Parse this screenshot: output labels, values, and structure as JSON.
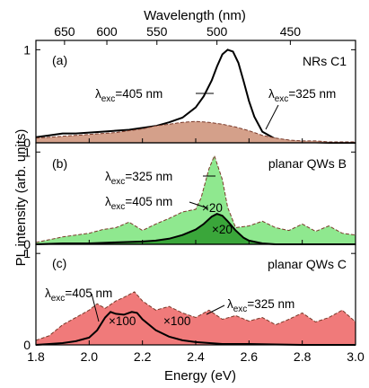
{
  "chart_data": {
    "type": "area",
    "shared_x_axis": {
      "label": "Energy (eV)",
      "range": [
        1.8,
        3.0
      ],
      "ticks": [
        "1.8",
        "2.0",
        "2.2",
        "2.4",
        "2.6",
        "2.8",
        "3.0"
      ]
    },
    "top_axis": {
      "label": "Wavelength (nm)",
      "ticks": [
        "650",
        "600",
        "550",
        "500",
        "450"
      ]
    },
    "ylabel": "PL intensity (arb. units)",
    "panels": [
      {
        "tag": "(a)",
        "title": "NRs C1",
        "ylim": [
          0,
          1.1
        ],
        "yticks": [
          "0",
          "1"
        ],
        "series": [
          {
            "style": "solid-black",
            "x": [
              1.8,
              1.85,
              1.9,
              1.95,
              2.0,
              2.05,
              2.1,
              2.15,
              2.2,
              2.25,
              2.3,
              2.35,
              2.4,
              2.43,
              2.46,
              2.48,
              2.5,
              2.52,
              2.54,
              2.56,
              2.58,
              2.6,
              2.62,
              2.65,
              2.7,
              2.75,
              2.8,
              2.9,
              3.0
            ],
            "values": [
              0.06,
              0.08,
              0.1,
              0.1,
              0.11,
              0.12,
              0.13,
              0.14,
              0.16,
              0.18,
              0.22,
              0.27,
              0.38,
              0.5,
              0.67,
              0.82,
              0.95,
              1.0,
              0.98,
              0.86,
              0.66,
              0.45,
              0.28,
              0.12,
              0.04,
              0.02,
              0.01,
              0.0,
              0.0
            ]
          },
          {
            "style": "dashed-filled",
            "fill": "#d4a08a",
            "x": [
              1.8,
              1.85,
              1.9,
              1.95,
              2.0,
              2.05,
              2.1,
              2.15,
              2.2,
              2.25,
              2.3,
              2.35,
              2.4,
              2.45,
              2.5,
              2.55,
              2.6,
              2.65,
              2.7,
              2.75,
              2.8,
              2.85,
              2.9,
              2.95,
              3.0
            ],
            "values": [
              0.05,
              0.06,
              0.07,
              0.08,
              0.09,
              0.1,
              0.11,
              0.13,
              0.15,
              0.18,
              0.2,
              0.22,
              0.23,
              0.22,
              0.2,
              0.17,
              0.13,
              0.08,
              0.05,
              0.03,
              0.02,
              0.02,
              0.01,
              0.01,
              0.01
            ]
          }
        ],
        "annotations": [
          {
            "symbol": "λ",
            "sub": "exc",
            "text": "=405 nm"
          },
          {
            "symbol": "λ",
            "sub": "exc",
            "text": "=325 nm"
          }
        ]
      },
      {
        "tag": "(b)",
        "title": "planar QWs B",
        "ylim": [
          0,
          1.1
        ],
        "yticks": [
          "0",
          "1"
        ],
        "series": [
          {
            "style": "dashed-filled",
            "fill": "#8fe88f",
            "x": [
              1.8,
              1.85,
              1.9,
              1.95,
              2.0,
              2.05,
              2.1,
              2.15,
              2.2,
              2.25,
              2.3,
              2.35,
              2.4,
              2.42,
              2.45,
              2.47,
              2.5,
              2.52,
              2.55,
              2.6,
              2.65,
              2.7,
              2.75,
              2.8,
              2.85,
              2.9,
              2.95,
              3.0
            ],
            "values": [
              0.02,
              0.05,
              0.08,
              0.1,
              0.12,
              0.16,
              0.18,
              0.24,
              0.15,
              0.22,
              0.28,
              0.35,
              0.38,
              0.5,
              0.82,
              0.96,
              0.7,
              0.4,
              0.18,
              0.2,
              0.25,
              0.18,
              0.15,
              0.22,
              0.14,
              0.2,
              0.12,
              0.1
            ]
          },
          {
            "style": "solid-black",
            "fill": "#3aa63a",
            "x": [
              1.8,
              1.9,
              2.0,
              2.1,
              2.2,
              2.25,
              2.3,
              2.35,
              2.4,
              2.43,
              2.46,
              2.48,
              2.5,
              2.52,
              2.55,
              2.58,
              2.6,
              2.65,
              2.7,
              2.8,
              3.0
            ],
            "values": [
              0.0,
              0.01,
              0.01,
              0.02,
              0.03,
              0.04,
              0.06,
              0.1,
              0.16,
              0.22,
              0.3,
              0.33,
              0.31,
              0.25,
              0.15,
              0.07,
              0.04,
              0.01,
              0.0,
              0.0,
              0.0
            ]
          }
        ],
        "annotations": [
          {
            "symbol": "λ",
            "sub": "exc",
            "text": "=325 nm"
          },
          {
            "symbol": "λ",
            "sub": "exc",
            "text": "=405 nm"
          },
          {
            "text": "×20"
          },
          {
            "text": "×20"
          }
        ]
      },
      {
        "tag": "(c)",
        "title": "planar QWs C",
        "ylim": [
          0,
          1.1
        ],
        "yticks": [
          "0",
          "1"
        ],
        "series": [
          {
            "style": "dashed-filled",
            "fill": "#f07a7a",
            "x": [
              1.8,
              1.85,
              1.9,
              1.95,
              2.0,
              2.03,
              2.06,
              2.1,
              2.13,
              2.17,
              2.2,
              2.25,
              2.3,
              2.35,
              2.4,
              2.45,
              2.5,
              2.55,
              2.6,
              2.65,
              2.7,
              2.75,
              2.8,
              2.85,
              2.9,
              2.95,
              3.0
            ],
            "values": [
              0.05,
              0.1,
              0.22,
              0.3,
              0.38,
              0.45,
              0.4,
              0.48,
              0.52,
              0.58,
              0.48,
              0.38,
              0.42,
              0.35,
              0.3,
              0.38,
              0.28,
              0.32,
              0.26,
              0.3,
              0.22,
              0.28,
              0.35,
              0.25,
              0.3,
              0.38,
              0.25
            ]
          },
          {
            "style": "solid-black",
            "x": [
              1.8,
              1.85,
              1.9,
              1.95,
              2.0,
              2.03,
              2.06,
              2.08,
              2.1,
              2.13,
              2.16,
              2.18,
              2.2,
              2.25,
              2.3,
              2.35,
              2.4,
              2.5,
              2.6,
              2.8,
              3.0
            ],
            "values": [
              0.0,
              0.01,
              0.02,
              0.04,
              0.08,
              0.16,
              0.3,
              0.36,
              0.34,
              0.33,
              0.36,
              0.35,
              0.28,
              0.16,
              0.09,
              0.05,
              0.03,
              0.01,
              0.01,
              0.0,
              0.0
            ]
          }
        ],
        "annotations": [
          {
            "symbol": "λ",
            "sub": "exc",
            "text": "=405 nm"
          },
          {
            "symbol": "λ",
            "sub": "exc",
            "text": "=325 nm"
          },
          {
            "text": "×100"
          },
          {
            "text": "×100"
          }
        ]
      }
    ]
  }
}
